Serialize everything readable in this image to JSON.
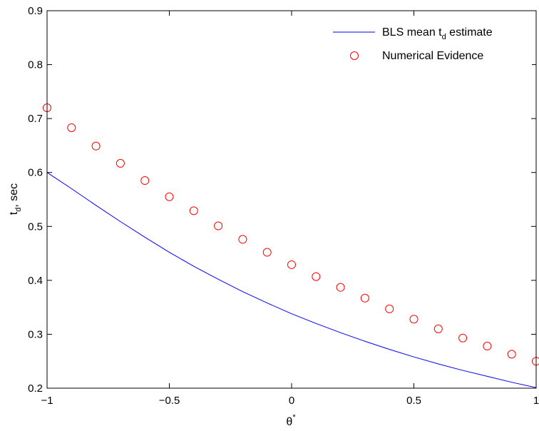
{
  "chart_data": {
    "type": "line",
    "title": "",
    "xlabel": "θ",
    "xlabel_sup": "*",
    "ylabel": "t",
    "ylabel_sub": "d",
    "ylabel_suffix": ", sec",
    "xlim": [
      -1,
      1
    ],
    "ylim": [
      0.2,
      0.9
    ],
    "xticks": [
      -1,
      -0.5,
      0,
      0.5,
      1
    ],
    "xtick_labels": [
      "−1",
      "−0.5",
      "0",
      "0.5",
      "1"
    ],
    "yticks": [
      0.2,
      0.3,
      0.4,
      0.5,
      0.6,
      0.7,
      0.8,
      0.9
    ],
    "ytick_labels": [
      "0.2",
      "0.3",
      "0.4",
      "0.5",
      "0.6",
      "0.7",
      "0.8",
      "0.9"
    ],
    "grid": false,
    "legend_position": "top-right",
    "series": [
      {
        "name": "BLS mean t",
        "name_sub": "d",
        "name_suffix": " estimate",
        "style": "line",
        "color": "#0000ff",
        "x": [
          -1.0,
          -0.9,
          -0.8,
          -0.7,
          -0.6,
          -0.5,
          -0.4,
          -0.3,
          -0.2,
          -0.1,
          0.0,
          0.1,
          0.2,
          0.3,
          0.4,
          0.5,
          0.6,
          0.7,
          0.8,
          0.9,
          1.0
        ],
        "y": [
          0.6,
          0.57,
          0.539,
          0.509,
          0.48,
          0.452,
          0.426,
          0.402,
          0.379,
          0.358,
          0.338,
          0.32,
          0.303,
          0.287,
          0.272,
          0.258,
          0.245,
          0.233,
          0.222,
          0.211,
          0.201
        ]
      },
      {
        "name": "Numerical Evidence",
        "style": "markers",
        "marker": "circle",
        "color": "#ff0000",
        "x": [
          -1.0,
          -0.9,
          -0.8,
          -0.7,
          -0.6,
          -0.5,
          -0.4,
          -0.3,
          -0.2,
          -0.1,
          0.0,
          0.1,
          0.2,
          0.3,
          0.4,
          0.5,
          0.6,
          0.7,
          0.8,
          0.9,
          1.0
        ],
        "y": [
          0.72,
          0.683,
          0.649,
          0.617,
          0.585,
          0.555,
          0.529,
          0.501,
          0.476,
          0.452,
          0.429,
          0.407,
          0.387,
          0.367,
          0.347,
          0.328,
          0.31,
          0.293,
          0.278,
          0.263,
          0.25
        ]
      }
    ]
  }
}
